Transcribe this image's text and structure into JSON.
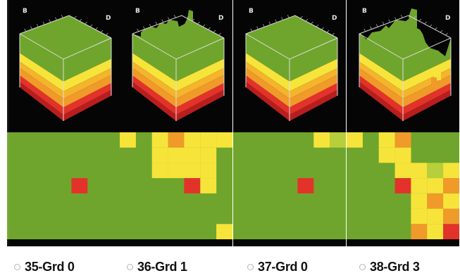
{
  "colors": {
    "green": "#6fa52c",
    "yellow": "#f7e43a",
    "orange": "#f09a2a",
    "red": "#e2322a",
    "dark_red": "#b81e1e",
    "background": "#050505",
    "pale_green": "#b7cf3a"
  },
  "panels": [
    {
      "id": "35",
      "axis_b": "B",
      "axis_d": "D",
      "radio_label": "35-Grd 0",
      "selected": false,
      "grid_cells": [
        {
          "col": 4,
          "row": 3,
          "c": "red"
        }
      ],
      "top_damage": "none"
    },
    {
      "id": "36",
      "axis_b": "B",
      "axis_d": "D",
      "radio_label": "36-Grd 1",
      "selected": false,
      "grid_cells": [
        {
          "col": 0,
          "row": 0,
          "c": "yellow"
        },
        {
          "col": 2,
          "row": 0,
          "c": "yellow"
        },
        {
          "col": 3,
          "row": 0,
          "c": "orange"
        },
        {
          "col": 4,
          "row": 0,
          "c": "yellow"
        },
        {
          "col": 5,
          "row": 0,
          "c": "yellow"
        },
        {
          "col": 6,
          "row": 0,
          "c": "yellow"
        },
        {
          "col": 2,
          "row": 1,
          "c": "yellow"
        },
        {
          "col": 3,
          "row": 1,
          "c": "yellow"
        },
        {
          "col": 4,
          "row": 1,
          "c": "yellow"
        },
        {
          "col": 5,
          "row": 1,
          "c": "yellow"
        },
        {
          "col": 2,
          "row": 2,
          "c": "yellow"
        },
        {
          "col": 3,
          "row": 2,
          "c": "yellow"
        },
        {
          "col": 4,
          "row": 2,
          "c": "yellow"
        },
        {
          "col": 5,
          "row": 2,
          "c": "yellow"
        },
        {
          "col": 4,
          "row": 3,
          "c": "red"
        },
        {
          "col": 5,
          "row": 3,
          "c": "yellow"
        },
        {
          "col": 6,
          "row": 6,
          "c": "yellow"
        }
      ],
      "top_damage": "small"
    },
    {
      "id": "37",
      "axis_b": "B",
      "axis_d": "D",
      "radio_label": "37-Grd 0",
      "selected": false,
      "grid_cells": [
        {
          "col": 5,
          "row": 0,
          "c": "yellow"
        },
        {
          "col": 6,
          "row": 0,
          "c": "pale_green"
        },
        {
          "col": 4,
          "row": 3,
          "c": "red"
        }
      ],
      "top_damage": "none"
    },
    {
      "id": "38",
      "axis_b": "B",
      "axis_d": "D",
      "radio_label": "38-Grd 3",
      "selected": false,
      "grid_cells": [
        {
          "col": 0,
          "row": 0,
          "c": "yellow"
        },
        {
          "col": 2,
          "row": 0,
          "c": "yellow"
        },
        {
          "col": 3,
          "row": 0,
          "c": "orange"
        },
        {
          "col": 2,
          "row": 1,
          "c": "yellow"
        },
        {
          "col": 3,
          "row": 1,
          "c": "yellow"
        },
        {
          "col": 3,
          "row": 2,
          "c": "yellow"
        },
        {
          "col": 4,
          "row": 2,
          "c": "yellow"
        },
        {
          "col": 5,
          "row": 2,
          "c": "pale_green"
        },
        {
          "col": 6,
          "row": 2,
          "c": "yellow"
        },
        {
          "col": 3,
          "row": 3,
          "c": "red"
        },
        {
          "col": 4,
          "row": 3,
          "c": "yellow"
        },
        {
          "col": 5,
          "row": 3,
          "c": "yellow"
        },
        {
          "col": 6,
          "row": 3,
          "c": "orange"
        },
        {
          "col": 4,
          "row": 4,
          "c": "yellow"
        },
        {
          "col": 5,
          "row": 4,
          "c": "orange"
        },
        {
          "col": 6,
          "row": 4,
          "c": "yellow"
        },
        {
          "col": 4,
          "row": 5,
          "c": "yellow"
        },
        {
          "col": 5,
          "row": 5,
          "c": "yellow"
        },
        {
          "col": 6,
          "row": 5,
          "c": "orange"
        },
        {
          "col": 4,
          "row": 6,
          "c": "orange"
        },
        {
          "col": 5,
          "row": 6,
          "c": "yellow"
        },
        {
          "col": 6,
          "row": 6,
          "c": "red"
        }
      ],
      "top_damage": "large"
    }
  ]
}
